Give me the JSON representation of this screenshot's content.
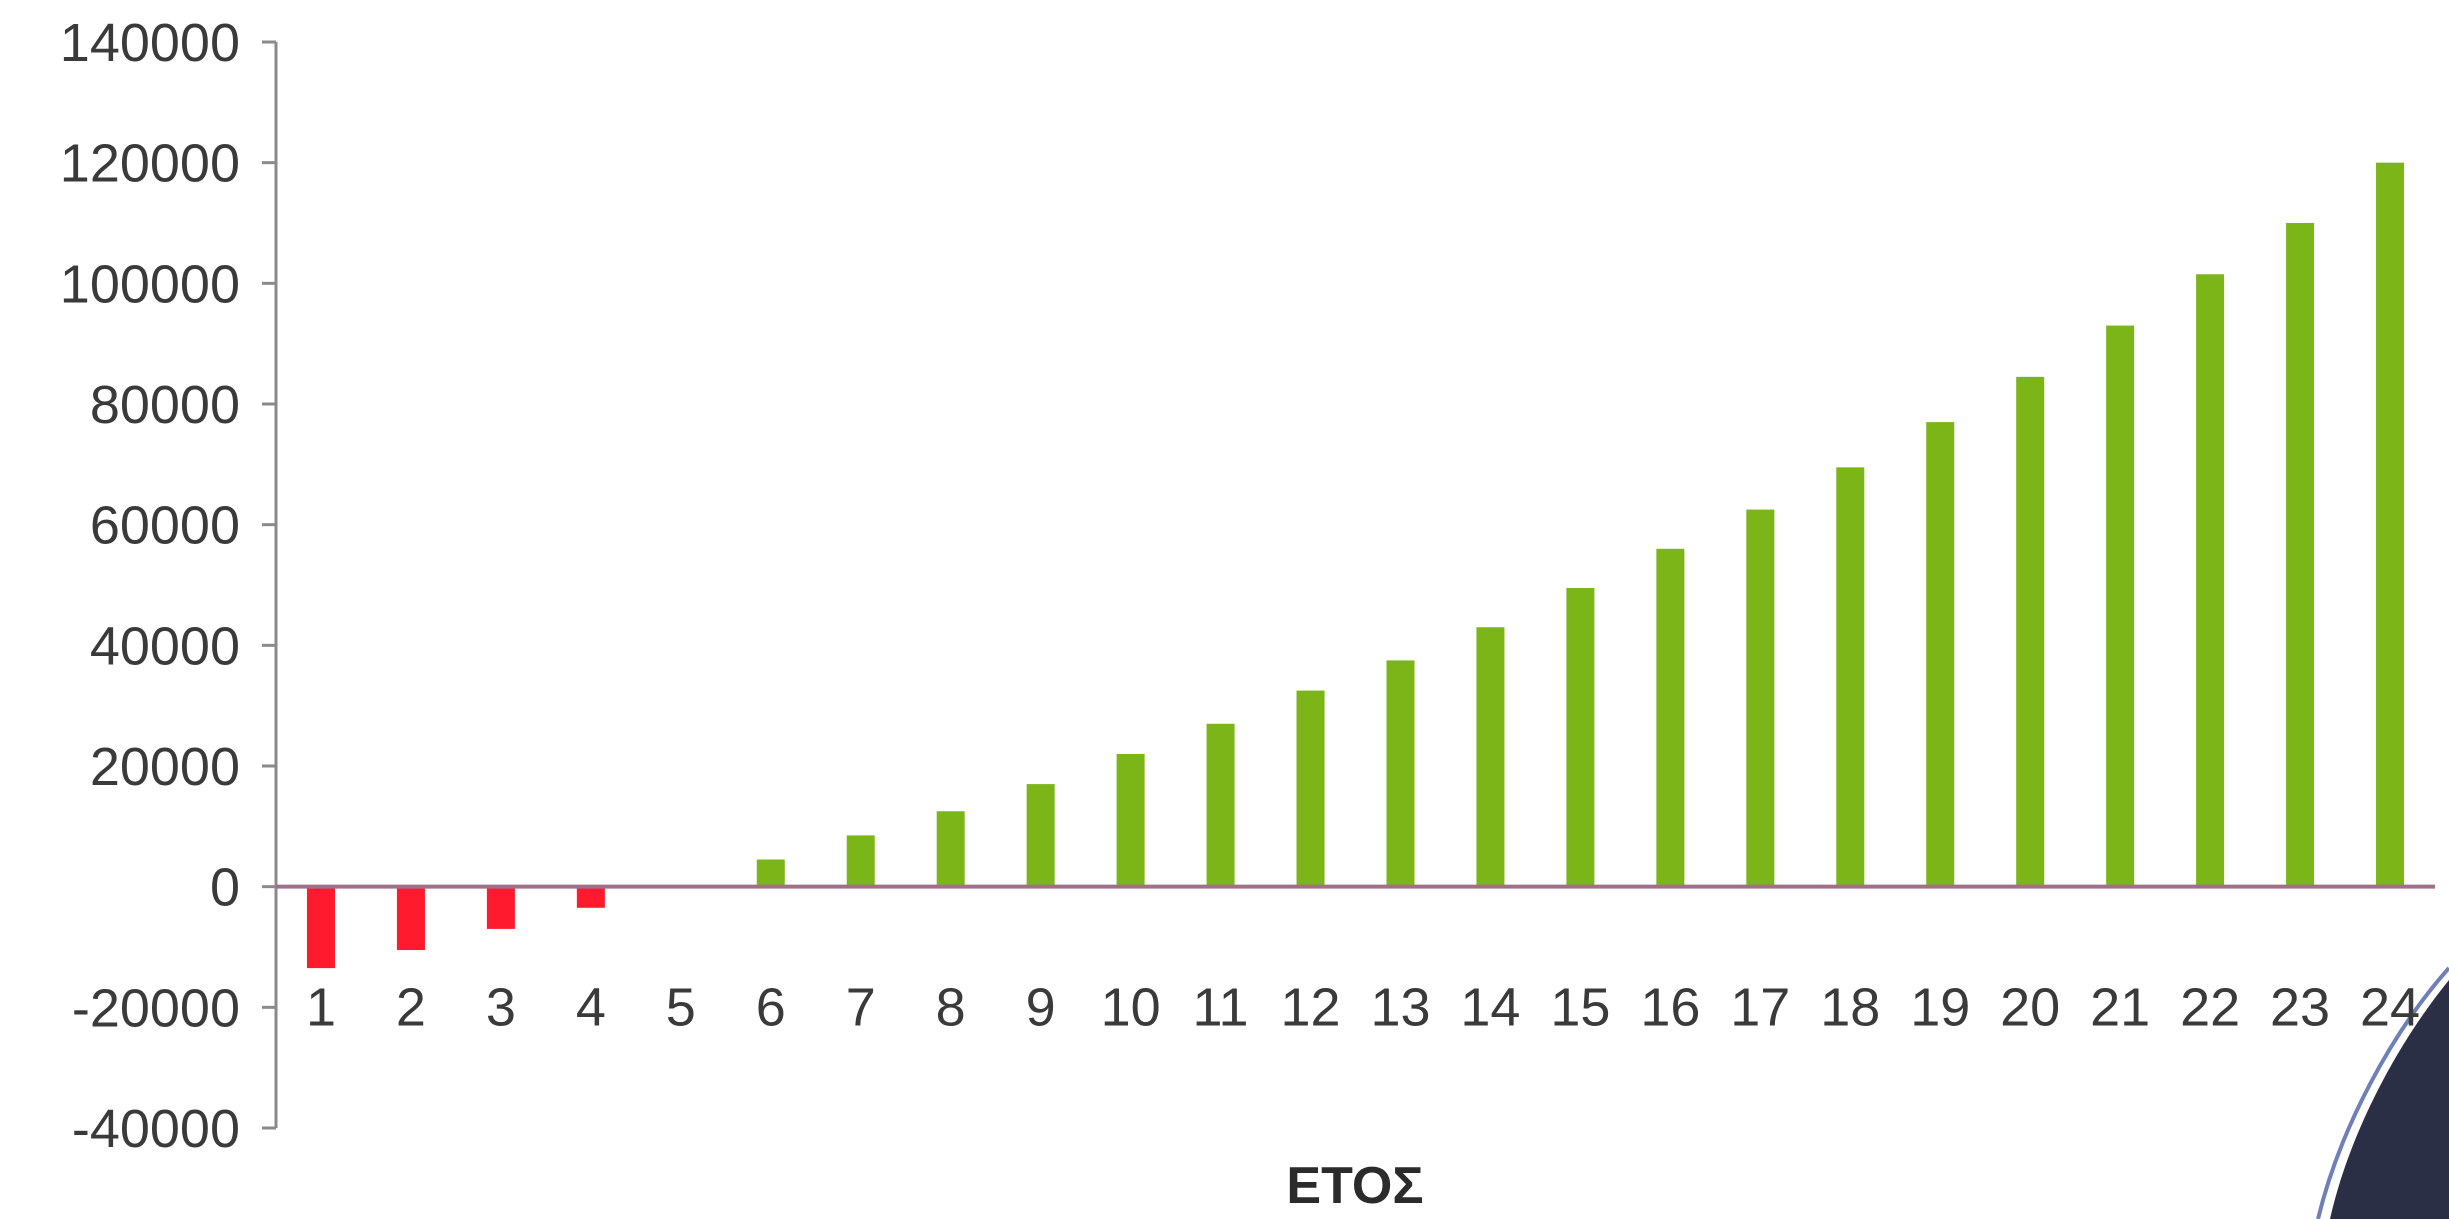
{
  "chart_data": {
    "type": "bar",
    "title": "",
    "xlabel": "ΕΤΟΣ",
    "ylabel": "",
    "categories": [
      "1",
      "2",
      "3",
      "4",
      "5",
      "6",
      "7",
      "8",
      "9",
      "10",
      "11",
      "12",
      "13",
      "14",
      "15",
      "16",
      "17",
      "18",
      "19",
      "20",
      "21",
      "22",
      "23",
      "24"
    ],
    "values": [
      -13500,
      -10500,
      -7000,
      -3500,
      0,
      4500,
      8500,
      12500,
      17000,
      22000,
      27000,
      32500,
      37500,
      43000,
      49500,
      56000,
      62500,
      69500,
      77000,
      84500,
      93000,
      101500,
      110000,
      120000
    ],
    "ylim": [
      -40000,
      140000
    ],
    "yticks": [
      "140000",
      "120000",
      "100000",
      "80000",
      "60000",
      "40000",
      "20000",
      "0",
      "-20000",
      "-40000"
    ],
    "grid": false,
    "legend": "none",
    "colors": {
      "positive": "#7cb518",
      "negative": "#ff1a2e",
      "zero_axis": "#a0708a",
      "axis": "#8a8a8a",
      "corner_accent": "#2a2f45"
    }
  }
}
